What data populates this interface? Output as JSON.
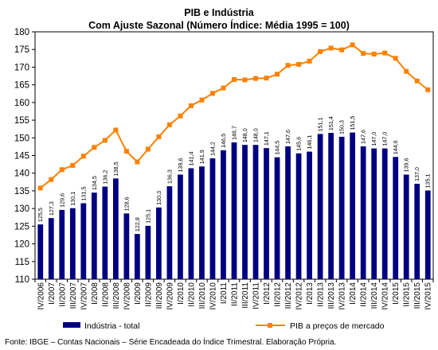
{
  "chart_data": {
    "type": "bar+line",
    "title": "PIB e Indústria",
    "subtitle": "Com Ajuste Sazonal (Número Índice: Média 1995 = 100)",
    "ylim": [
      110,
      180
    ],
    "yticks": [
      110,
      115,
      120,
      125,
      130,
      135,
      140,
      145,
      150,
      155,
      160,
      165,
      170,
      175,
      180
    ],
    "categories": [
      "IV/2006",
      "I/2007",
      "II/2007",
      "III/2007",
      "IV/2007",
      "I/2008",
      "II/2008",
      "III/2008",
      "IV/2008",
      "I/2009",
      "II/2009",
      "III/2009",
      "IV/2009",
      "I/2010",
      "II/2010",
      "III/2010",
      "IV/2010",
      "I/2011",
      "II/2011",
      "III/2011",
      "IV/2011",
      "I/2012",
      "II/2012",
      "III/2012",
      "IV/2012",
      "I/2013",
      "II/2013",
      "III/2013",
      "IV/2013",
      "I/2014",
      "II/2014",
      "III/2014",
      "IV/2014",
      "I/2015",
      "II/2015",
      "III/2015",
      "IV/2015"
    ],
    "series": [
      {
        "name": "Indústria - total",
        "type": "bar",
        "color": "#000080",
        "values": [
          125.5,
          127.3,
          129.6,
          130.1,
          131.5,
          134.5,
          136.2,
          138.5,
          128.6,
          122.8,
          125.1,
          130.3,
          136.3,
          139.6,
          141.4,
          141.9,
          144.2,
          146.5,
          148.7,
          148.0,
          148.0,
          147.1,
          144.5,
          147.6,
          145.6,
          146.1,
          151.1,
          151.4,
          150.3,
          151.5,
          147.6,
          147.0,
          147.0,
          144.6,
          139.6,
          137.0,
          135.1
        ],
        "labels": [
          "125,5",
          "127,3",
          "129,6",
          "130,1",
          "131,5",
          "134,5",
          "136,2",
          "138,5",
          "128,6",
          "122,8",
          "125,1",
          "130,3",
          "136,3",
          "139,6",
          "141,4",
          "141,9",
          "144,2",
          "146,5",
          "148,7",
          "148,0",
          "148,0",
          "147,1",
          "144,5",
          "147,6",
          "145,6",
          "146,1",
          "151,1",
          "151,4",
          "150,3",
          "151,5",
          "147,6",
          "147,0",
          "147,0",
          "144,6",
          "139,6",
          "137,0",
          "135,1"
        ]
      },
      {
        "name": "PIB a preços de mercado",
        "type": "line",
        "color": "#FF8000",
        "values": [
          135.8,
          138.2,
          141.0,
          142.2,
          144.8,
          147.3,
          149.3,
          152.2,
          146.2,
          143.2,
          146.8,
          150.3,
          153.7,
          156.2,
          159.1,
          160.7,
          162.6,
          164.1,
          166.5,
          166.4,
          166.8,
          166.9,
          168.0,
          170.5,
          170.8,
          171.7,
          174.4,
          175.4,
          174.9,
          176.3,
          173.9,
          173.7,
          174.0,
          172.5,
          168.8,
          166.1,
          163.6
        ]
      }
    ],
    "legend_position": "bottom",
    "grid": false
  },
  "source": "Fonte: IBGE – Contas Nacionais – Série Encadeada do Índice Trimestral. Elaboração Própria."
}
